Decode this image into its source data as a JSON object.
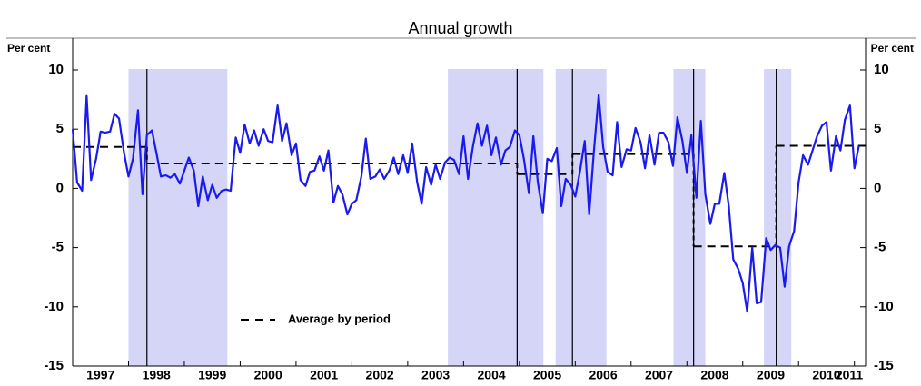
{
  "chart_data": {
    "type": "line",
    "subtitle": "Annual growth",
    "y_unit_left": "Per cent",
    "y_unit_right": "Per cent",
    "xlim": [
      1997,
      2011.2
    ],
    "xticks": [
      1997,
      1998,
      1999,
      2000,
      2001,
      2002,
      2003,
      2004,
      2005,
      2006,
      2007,
      2008,
      2009,
      2010,
      2011
    ],
    "ylim": [
      -15,
      10
    ],
    "yticks": [
      10,
      5,
      0,
      -5,
      -10,
      -15
    ],
    "grid": false,
    "legend": "bottom-left",
    "series": [
      {
        "color": "#1a1aee",
        "x": [
          1997.0,
          1997.08,
          1997.17,
          1997.25,
          1997.33,
          1997.42,
          1997.5,
          1997.58,
          1997.67,
          1997.75,
          1997.83,
          1997.92,
          1998.0,
          1998.08,
          1998.17,
          1998.25,
          1998.33,
          1998.42,
          1998.5,
          1998.58,
          1998.67,
          1998.75,
          1998.83,
          1998.92,
          1999.0,
          1999.08,
          1999.17,
          1999.25,
          1999.33,
          1999.42,
          1999.5,
          1999.58,
          1999.67,
          1999.75,
          1999.83,
          1999.92,
          2000.0,
          2000.08,
          2000.17,
          2000.25,
          2000.33,
          2000.42,
          2000.5,
          2000.58,
          2000.67,
          2000.75,
          2000.83,
          2000.92,
          2001.0,
          2001.08,
          2001.17,
          2001.25,
          2001.33,
          2001.42,
          2001.5,
          2001.58,
          2001.67,
          2001.75,
          2001.83,
          2001.92,
          2002.0,
          2002.08,
          2002.17,
          2002.25,
          2002.33,
          2002.42,
          2002.5,
          2002.58,
          2002.67,
          2002.75,
          2002.83,
          2002.92,
          2003.0,
          2003.08,
          2003.17,
          2003.25,
          2003.33,
          2003.42,
          2003.5,
          2003.58,
          2003.67,
          2003.75,
          2003.83,
          2003.92,
          2004.0,
          2004.08,
          2004.17,
          2004.25,
          2004.33,
          2004.42,
          2004.5,
          2004.58,
          2004.67,
          2004.75,
          2004.83,
          2004.92,
          2005.0,
          2005.08,
          2005.17,
          2005.25,
          2005.33,
          2005.42,
          2005.5,
          2005.58,
          2005.67,
          2005.75,
          2005.83,
          2005.92,
          2006.0,
          2006.08,
          2006.17,
          2006.25,
          2006.33,
          2006.42,
          2006.5,
          2006.58,
          2006.67,
          2006.75,
          2006.83,
          2006.92,
          2007.0,
          2007.08,
          2007.17,
          2007.25,
          2007.33,
          2007.42,
          2007.5,
          2007.58,
          2007.67,
          2007.75,
          2007.83,
          2007.92,
          2008.0,
          2008.08,
          2008.17,
          2008.25,
          2008.33,
          2008.42,
          2008.5,
          2008.58,
          2008.67,
          2008.75,
          2008.83,
          2008.92,
          2009.0,
          2009.08,
          2009.17,
          2009.25,
          2009.33,
          2009.42,
          2009.5,
          2009.58,
          2009.67,
          2009.75,
          2009.83,
          2009.92,
          2010.0,
          2010.08,
          2010.17,
          2010.25,
          2010.33,
          2010.42,
          2010.5,
          2010.58,
          2010.67,
          2010.75,
          2010.83,
          2010.92,
          2011.0,
          2011.08
        ],
        "values": [
          5.0,
          0.5,
          -0.2,
          7.8,
          0.7,
          2.5,
          4.8,
          4.7,
          4.8,
          6.3,
          5.9,
          3.0,
          1.0,
          2.5,
          6.6,
          -0.5,
          4.5,
          4.9,
          3.0,
          1.0,
          1.1,
          0.9,
          1.2,
          0.4,
          1.5,
          2.6,
          1.5,
          -1.5,
          1.0,
          -1.0,
          0.3,
          -0.8,
          -0.2,
          -0.1,
          -0.2,
          4.3,
          3.0,
          5.4,
          3.8,
          4.9,
          3.6,
          5.0,
          4.0,
          3.9,
          7.0,
          4.0,
          5.5,
          2.8,
          3.8,
          0.7,
          0.2,
          1.4,
          1.5,
          2.7,
          1.5,
          3.2,
          -1.2,
          0.2,
          -0.5,
          -2.2,
          -1.3,
          -1.0,
          1.0,
          4.2,
          0.8,
          1.0,
          1.6,
          0.8,
          1.5,
          2.6,
          1.2,
          2.8,
          1.3,
          3.8,
          0.5,
          -1.3,
          1.8,
          0.3,
          2.0,
          0.8,
          2.2,
          2.6,
          2.4,
          1.2,
          4.4,
          0.8,
          3.6,
          5.5,
          3.6,
          5.3,
          2.8,
          4.3,
          2.0,
          3.2,
          3.5,
          4.9,
          4.5,
          2.5,
          -0.4,
          4.4,
          0.5,
          -2.1,
          2.5,
          2.3,
          3.4,
          -1.5,
          0.8,
          0.3,
          -0.7,
          1.3,
          4.0,
          -2.2,
          2.9,
          7.9,
          3.5,
          1.4,
          1.1,
          5.6,
          1.8,
          3.3,
          3.2,
          5.1,
          3.9,
          1.7,
          4.5,
          2.0,
          4.7,
          4.7,
          3.9,
          1.9,
          6.0,
          4.0,
          1.3,
          4.5,
          -0.8,
          5.7,
          -0.5,
          -3.0,
          -1.3,
          -1.3,
          1.3,
          -1.5,
          -6.0,
          -6.8,
          -8.0,
          -10.4,
          -5.0,
          -9.7,
          -9.6,
          -4.2,
          -5.2,
          -4.8,
          -5.0,
          -8.3,
          -4.9,
          -3.6,
          0.5,
          2.8,
          2.0,
          3.2,
          4.4,
          5.3,
          5.6,
          1.5,
          4.4,
          3.2,
          5.8,
          7.0,
          1.7,
          3.6
        ]
      }
    ],
    "average_by_period": {
      "name": "Average by period",
      "color": "#000000",
      "periods": [
        {
          "start": 1997.0,
          "end": 1998.33,
          "value": 3.5
        },
        {
          "start": 1998.33,
          "end": 2004.96,
          "value": 2.1
        },
        {
          "start": 2004.96,
          "end": 2005.95,
          "value": 1.2
        },
        {
          "start": 2005.95,
          "end": 2008.12,
          "value": 2.9
        },
        {
          "start": 2008.12,
          "end": 2009.6,
          "value": -4.9
        },
        {
          "start": 2009.6,
          "end": 2011.2,
          "value": 3.6
        }
      ]
    },
    "shaded_color": "#d5d5f7",
    "shaded_periods": [
      [
        1998.0,
        1999.77
      ],
      [
        2003.72,
        2005.43
      ],
      [
        2005.65,
        2006.56
      ],
      [
        2007.76,
        2008.33
      ],
      [
        2009.38,
        2009.87
      ]
    ]
  }
}
